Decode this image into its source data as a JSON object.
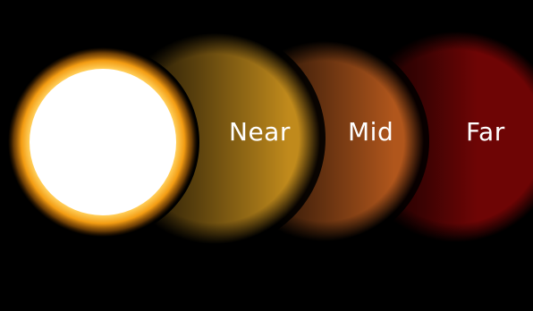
{
  "labels": {
    "near": "Near",
    "mid": "Mid",
    "far": "Far"
  },
  "colors": {
    "background": "#000000",
    "star_core": "#ffffff",
    "star_glow": "#f5a21e",
    "near_zone": "#c48a1c",
    "mid_zone": "#b35a1c",
    "far_zone": "#7a0606",
    "label_text": "#ffffff"
  }
}
